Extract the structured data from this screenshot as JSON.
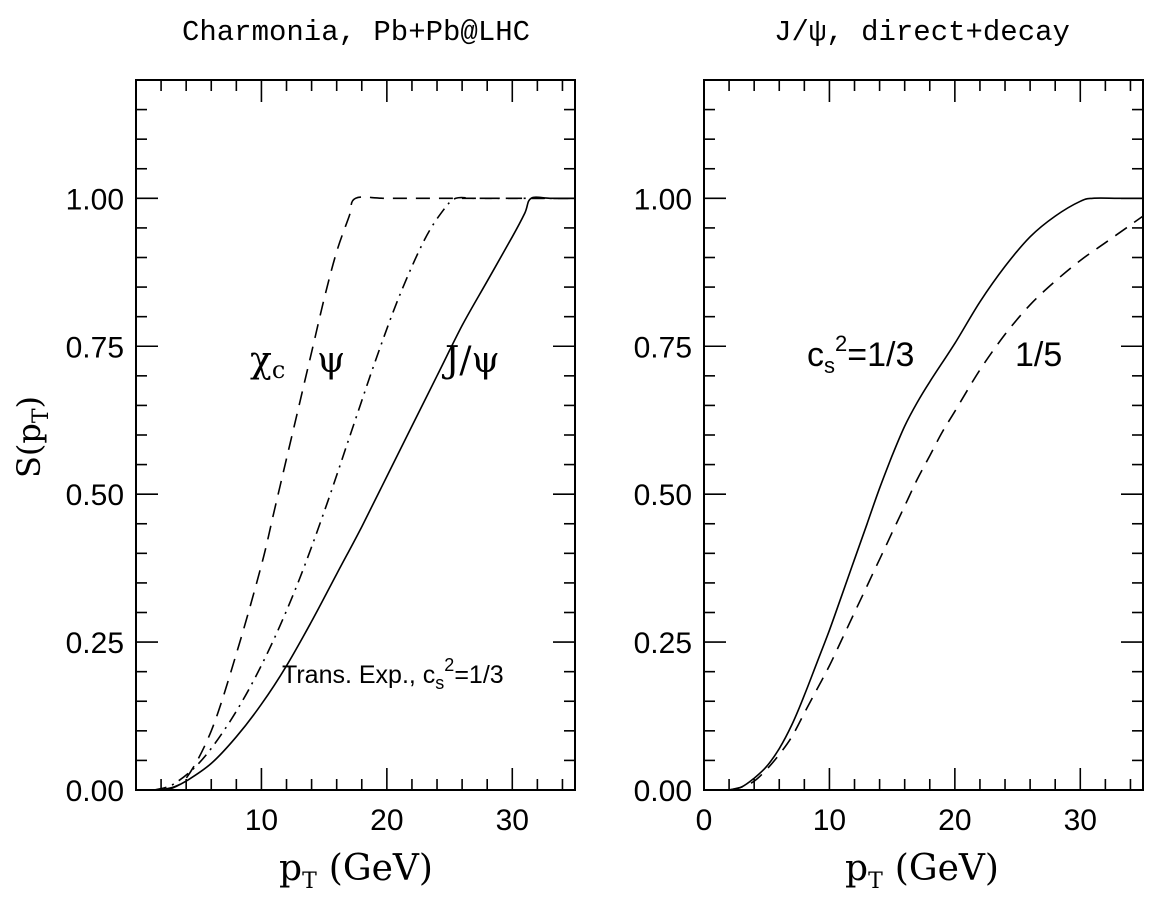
{
  "chart_data": [
    {
      "type": "line",
      "title": "Charmonia, Pb+Pb@LHC",
      "xlabel": "p",
      "xlabel_sub": "T",
      "xlabel_unit": "(GeV)",
      "ylabel": "S(p",
      "ylabel_sub": "T",
      "ylabel_close": ")",
      "xlim": [
        0,
        35
      ],
      "ylim": [
        0,
        1.2
      ],
      "xticks": [
        10,
        20,
        30
      ],
      "yticks": [
        "0.00",
        "0.25",
        "0.50",
        "0.75",
        "1.00"
      ],
      "ytick_values": [
        0,
        0.25,
        0.5,
        0.75,
        1.0
      ],
      "annotation": {
        "text": "Trans. Exp., c",
        "sub": "s",
        "sup": "2",
        "tail": "=1/3"
      },
      "series": [
        {
          "name": "J/ψ",
          "style": "solid",
          "x": [
            2,
            3,
            4,
            6,
            8,
            10,
            12,
            14,
            16,
            18,
            20,
            22,
            24,
            26,
            28,
            30,
            31,
            31.5,
            33,
            35
          ],
          "y": [
            0,
            0.005,
            0.015,
            0.045,
            0.09,
            0.145,
            0.21,
            0.285,
            0.365,
            0.445,
            0.53,
            0.615,
            0.7,
            0.785,
            0.86,
            0.935,
            0.975,
            1.0,
            1.0,
            1.0
          ]
        },
        {
          "name": "ψ",
          "style": "dashdot",
          "x": [
            1.5,
            3,
            5,
            7,
            9,
            11,
            13,
            15,
            17,
            19,
            21,
            23,
            24.5,
            25.5,
            27,
            30,
            35
          ],
          "y": [
            0,
            0.01,
            0.045,
            0.1,
            0.17,
            0.255,
            0.355,
            0.47,
            0.595,
            0.72,
            0.835,
            0.93,
            0.98,
            1.0,
            1.0,
            1.0,
            1.0
          ]
        },
        {
          "name": "χ",
          "name_sub": "c",
          "style": "dashed",
          "x": [
            2.5,
            4,
            6,
            8,
            10,
            11,
            12,
            13,
            14,
            15,
            16,
            17,
            17.5,
            20,
            25,
            35
          ],
          "y": [
            0,
            0.02,
            0.1,
            0.23,
            0.38,
            0.47,
            0.56,
            0.65,
            0.74,
            0.83,
            0.91,
            0.97,
            1.0,
            1.0,
            1.0,
            1.0
          ]
        }
      ]
    },
    {
      "type": "line",
      "title": "J/ψ, direct+decay",
      "xlabel": "p",
      "xlabel_sub": "T",
      "xlabel_unit": "(GeV)",
      "xlim": [
        0,
        35
      ],
      "ylim": [
        0,
        1.2
      ],
      "xticks": [
        0,
        10,
        20,
        30
      ],
      "yticks": [
        "0.00",
        "0.25",
        "0.50",
        "0.75",
        "1.00"
      ],
      "ytick_values": [
        0,
        0.25,
        0.5,
        0.75,
        1.0
      ],
      "series": [
        {
          "name": "c",
          "name_sub": "s",
          "name_sup": "2",
          "name_tail": "=1/3",
          "style": "solid",
          "x": [
            2,
            3,
            4,
            5,
            6,
            7,
            8,
            9,
            10,
            11,
            12,
            13,
            14,
            15,
            16,
            17,
            18,
            20,
            22,
            24,
            26,
            28,
            30,
            31,
            33,
            35
          ],
          "y": [
            0,
            0.005,
            0.02,
            0.04,
            0.07,
            0.11,
            0.16,
            0.215,
            0.27,
            0.33,
            0.39,
            0.45,
            0.51,
            0.565,
            0.615,
            0.655,
            0.69,
            0.755,
            0.825,
            0.885,
            0.935,
            0.97,
            0.995,
            1.0,
            1.0,
            1.0
          ]
        },
        {
          "name": "1/5",
          "style": "dashed",
          "x": [
            2,
            3,
            4,
            5,
            6,
            7,
            8,
            9,
            10,
            11,
            12,
            13,
            14,
            15,
            16,
            17,
            18,
            19,
            20,
            22,
            24,
            26,
            28,
            30,
            32,
            34,
            35
          ],
          "y": [
            0,
            0.005,
            0.015,
            0.035,
            0.06,
            0.09,
            0.13,
            0.17,
            0.21,
            0.255,
            0.3,
            0.345,
            0.39,
            0.435,
            0.48,
            0.525,
            0.565,
            0.605,
            0.64,
            0.71,
            0.77,
            0.82,
            0.86,
            0.895,
            0.925,
            0.955,
            0.97
          ]
        }
      ]
    }
  ]
}
